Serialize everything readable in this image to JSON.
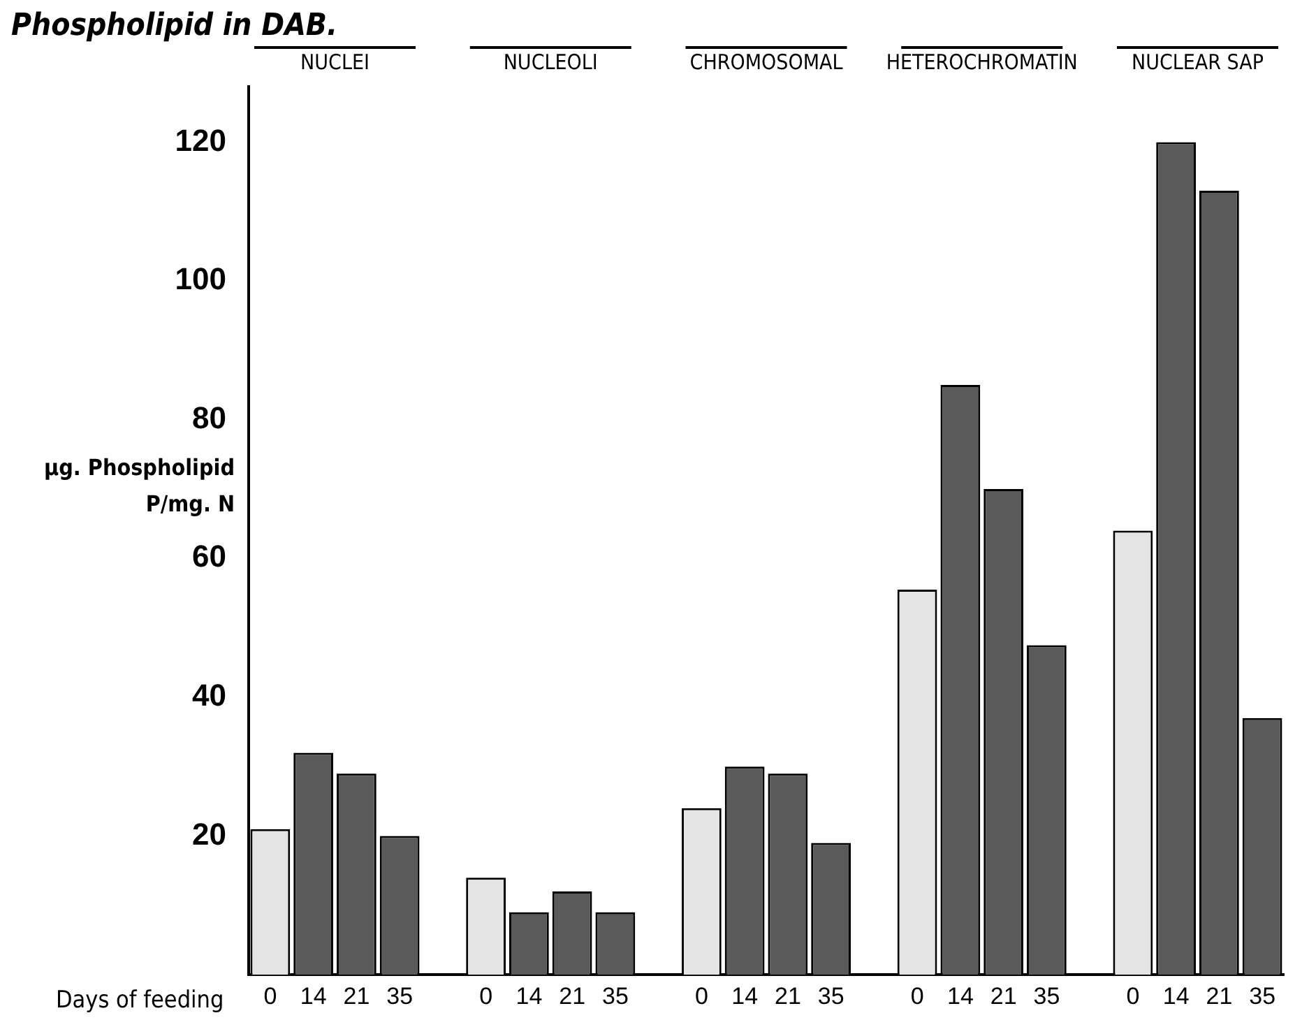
{
  "chart_data": {
    "type": "bar",
    "title": "Phospholipid in DAB.",
    "ylabel": "µg. Phospholipid P/mg. N",
    "xlabel": "Days of feeding",
    "annotations": [
      "NUCLEI",
      "NUCLEOLI",
      "CHROMOSOMAL",
      "HETEROCHROMATIN",
      "NUCLEAR SAP"
    ],
    "categories": [
      "0",
      "14",
      "21",
      "35",
      null,
      "0",
      "14",
      "21",
      "35",
      null,
      "0",
      "14",
      "21",
      "35",
      null,
      "0",
      "14",
      "21",
      "35",
      null,
      "0",
      "14",
      "21",
      "35"
    ],
    "values": [
      21,
      32,
      29,
      20,
      null,
      14,
      9,
      12,
      9,
      null,
      24,
      30,
      29,
      19,
      null,
      55.5,
      85,
      70,
      47.5,
      null,
      64,
      120,
      113,
      37
    ],
    "colors": [
      "#e4e4e4",
      "#5a5a5a",
      "#5a5a5a",
      "#5a5a5a",
      "#ffffff",
      "#e4e4e4",
      "#5a5a5a",
      "#5a5a5a",
      "#5a5a5a",
      "#ffffff",
      "#e4e4e4",
      "#5a5a5a",
      "#5a5a5a",
      "#5a5a5a",
      "#ffffff",
      "#e4e4e4",
      "#5a5a5a",
      "#5a5a5a",
      "#5a5a5a",
      "#ffffff",
      "#e4e4e4",
      "#5a5a5a",
      "#5a5a5a",
      "#5a5a5a"
    ],
    "ylim": [
      0,
      128
    ],
    "yticks": [
      20,
      40,
      60,
      80,
      100,
      120
    ],
    "grid": false,
    "legend": false
  }
}
